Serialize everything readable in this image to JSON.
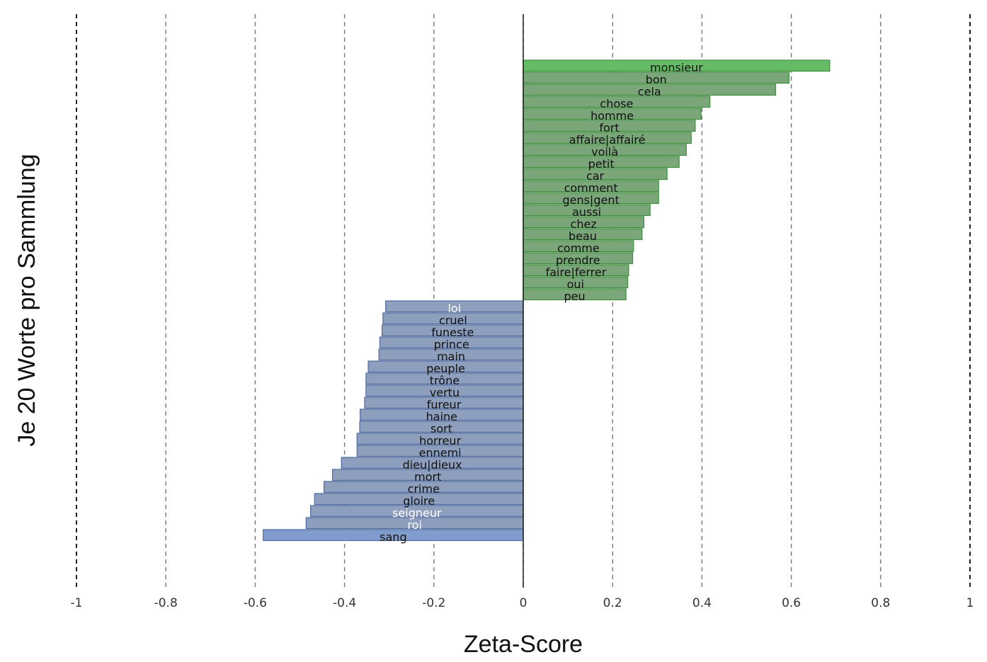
{
  "chart_data": {
    "type": "bar",
    "orientation": "horizontal",
    "xlabel": "Zeta-Score",
    "ylabel": "Je 20 Worte pro Sammlung",
    "xlim": [
      -1,
      1
    ],
    "xticks": [
      -1,
      -0.8,
      -0.6,
      -0.4,
      -0.2,
      0,
      0.2,
      0.4,
      0.6,
      0.8,
      1
    ],
    "xtick_labels": [
      "-1",
      "-0.8",
      "-0.6",
      "-0.4",
      "-0.2",
      "0",
      "0.2",
      "0.4",
      "0.6",
      "0.8",
      "1"
    ],
    "grid": "vertical dashed",
    "colors": {
      "positive": "#7aa67a",
      "positive_strong": "#66bb66",
      "positive_edge": "#3f8f3f",
      "negative": "#8e9fbd",
      "negative_strong": "#7f9ccc",
      "negative_edge": "#4e6a9e"
    },
    "series": [
      {
        "words": [
          "monsieur",
          "bon",
          "cela",
          "chose",
          "homme",
          "fort",
          "affaire|affairé",
          "voilà",
          "petit",
          "car",
          "comment",
          "gens|gent",
          "aussi",
          "chez",
          "beau",
          "comme",
          "prendre",
          "faire|ferrer",
          "oui",
          "peu"
        ],
        "values": [
          0.686,
          0.595,
          0.565,
          0.418,
          0.398,
          0.385,
          0.376,
          0.365,
          0.349,
          0.322,
          0.303,
          0.303,
          0.284,
          0.27,
          0.266,
          0.247,
          0.245,
          0.236,
          0.234,
          0.23
        ]
      },
      {
        "words": [
          "loi",
          "cruel",
          "funeste",
          "prince",
          "main",
          "peuple",
          "trône",
          "vertu",
          "fureur",
          "haine",
          "sort",
          "horreur",
          "ennemi",
          "dieu|dieux",
          "mort",
          "crime",
          "gloire",
          "seigneur",
          "roi",
          "sang"
        ],
        "values": [
          -0.308,
          -0.314,
          -0.316,
          -0.321,
          -0.323,
          -0.347,
          -0.352,
          -0.352,
          -0.355,
          -0.365,
          -0.366,
          -0.372,
          -0.372,
          -0.407,
          -0.427,
          -0.446,
          -0.467,
          -0.476,
          -0.486,
          -0.582
        ]
      }
    ]
  }
}
